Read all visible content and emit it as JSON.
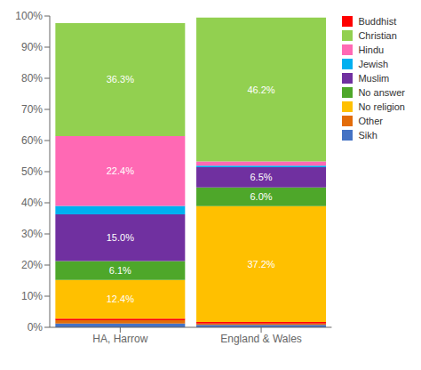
{
  "chart_data": {
    "type": "bar",
    "stacked": true,
    "categories": [
      "HA, Harrow",
      "England & Wales"
    ],
    "series": [
      {
        "name": "Sikh",
        "color": "#4472C4",
        "values": [
          1.2,
          0.8
        ]
      },
      {
        "name": "Other",
        "color": "#E36C09",
        "values": [
          1.1,
          0.4
        ]
      },
      {
        "name": "Buddhist",
        "color": "#FF0000",
        "values": [
          0.5,
          0.5
        ]
      },
      {
        "name": "No religion",
        "color": "#FFC000",
        "values": [
          12.4,
          37.2
        ],
        "value_labels": [
          "12.4%",
          "37.2%"
        ]
      },
      {
        "name": "No answer",
        "color": "#4EA72A",
        "values": [
          6.1,
          6.0
        ],
        "value_labels": [
          "6.1%",
          "6.0%"
        ]
      },
      {
        "name": "Muslim",
        "color": "#7030A0",
        "values": [
          15.0,
          6.5
        ],
        "value_labels": [
          "15.0%",
          "6.5%"
        ]
      },
      {
        "name": "Jewish",
        "color": "#00B0F0",
        "values": [
          2.7,
          0.5
        ]
      },
      {
        "name": "Hindu",
        "color": "#FF69B4",
        "values": [
          22.4,
          1.4
        ],
        "value_labels": [
          "22.4%",
          null
        ]
      },
      {
        "name": "Christian",
        "color": "#92D050",
        "values": [
          36.3,
          46.2
        ],
        "value_labels": [
          "36.3%",
          "46.2%"
        ]
      }
    ],
    "ylim": [
      0,
      100
    ],
    "yticks": [
      {
        "value": 0,
        "label": "0%"
      },
      {
        "value": 10,
        "label": "10%"
      },
      {
        "value": 20,
        "label": "20%"
      },
      {
        "value": 30,
        "label": "30%"
      },
      {
        "value": 40,
        "label": "40%"
      },
      {
        "value": 50,
        "label": "50%"
      },
      {
        "value": 60,
        "label": "60%"
      },
      {
        "value": 70,
        "label": "70%"
      },
      {
        "value": 80,
        "label": "80%"
      },
      {
        "value": 90,
        "label": "90%"
      },
      {
        "value": 100,
        "label": "100%"
      }
    ],
    "grid": false,
    "legend": "right"
  }
}
